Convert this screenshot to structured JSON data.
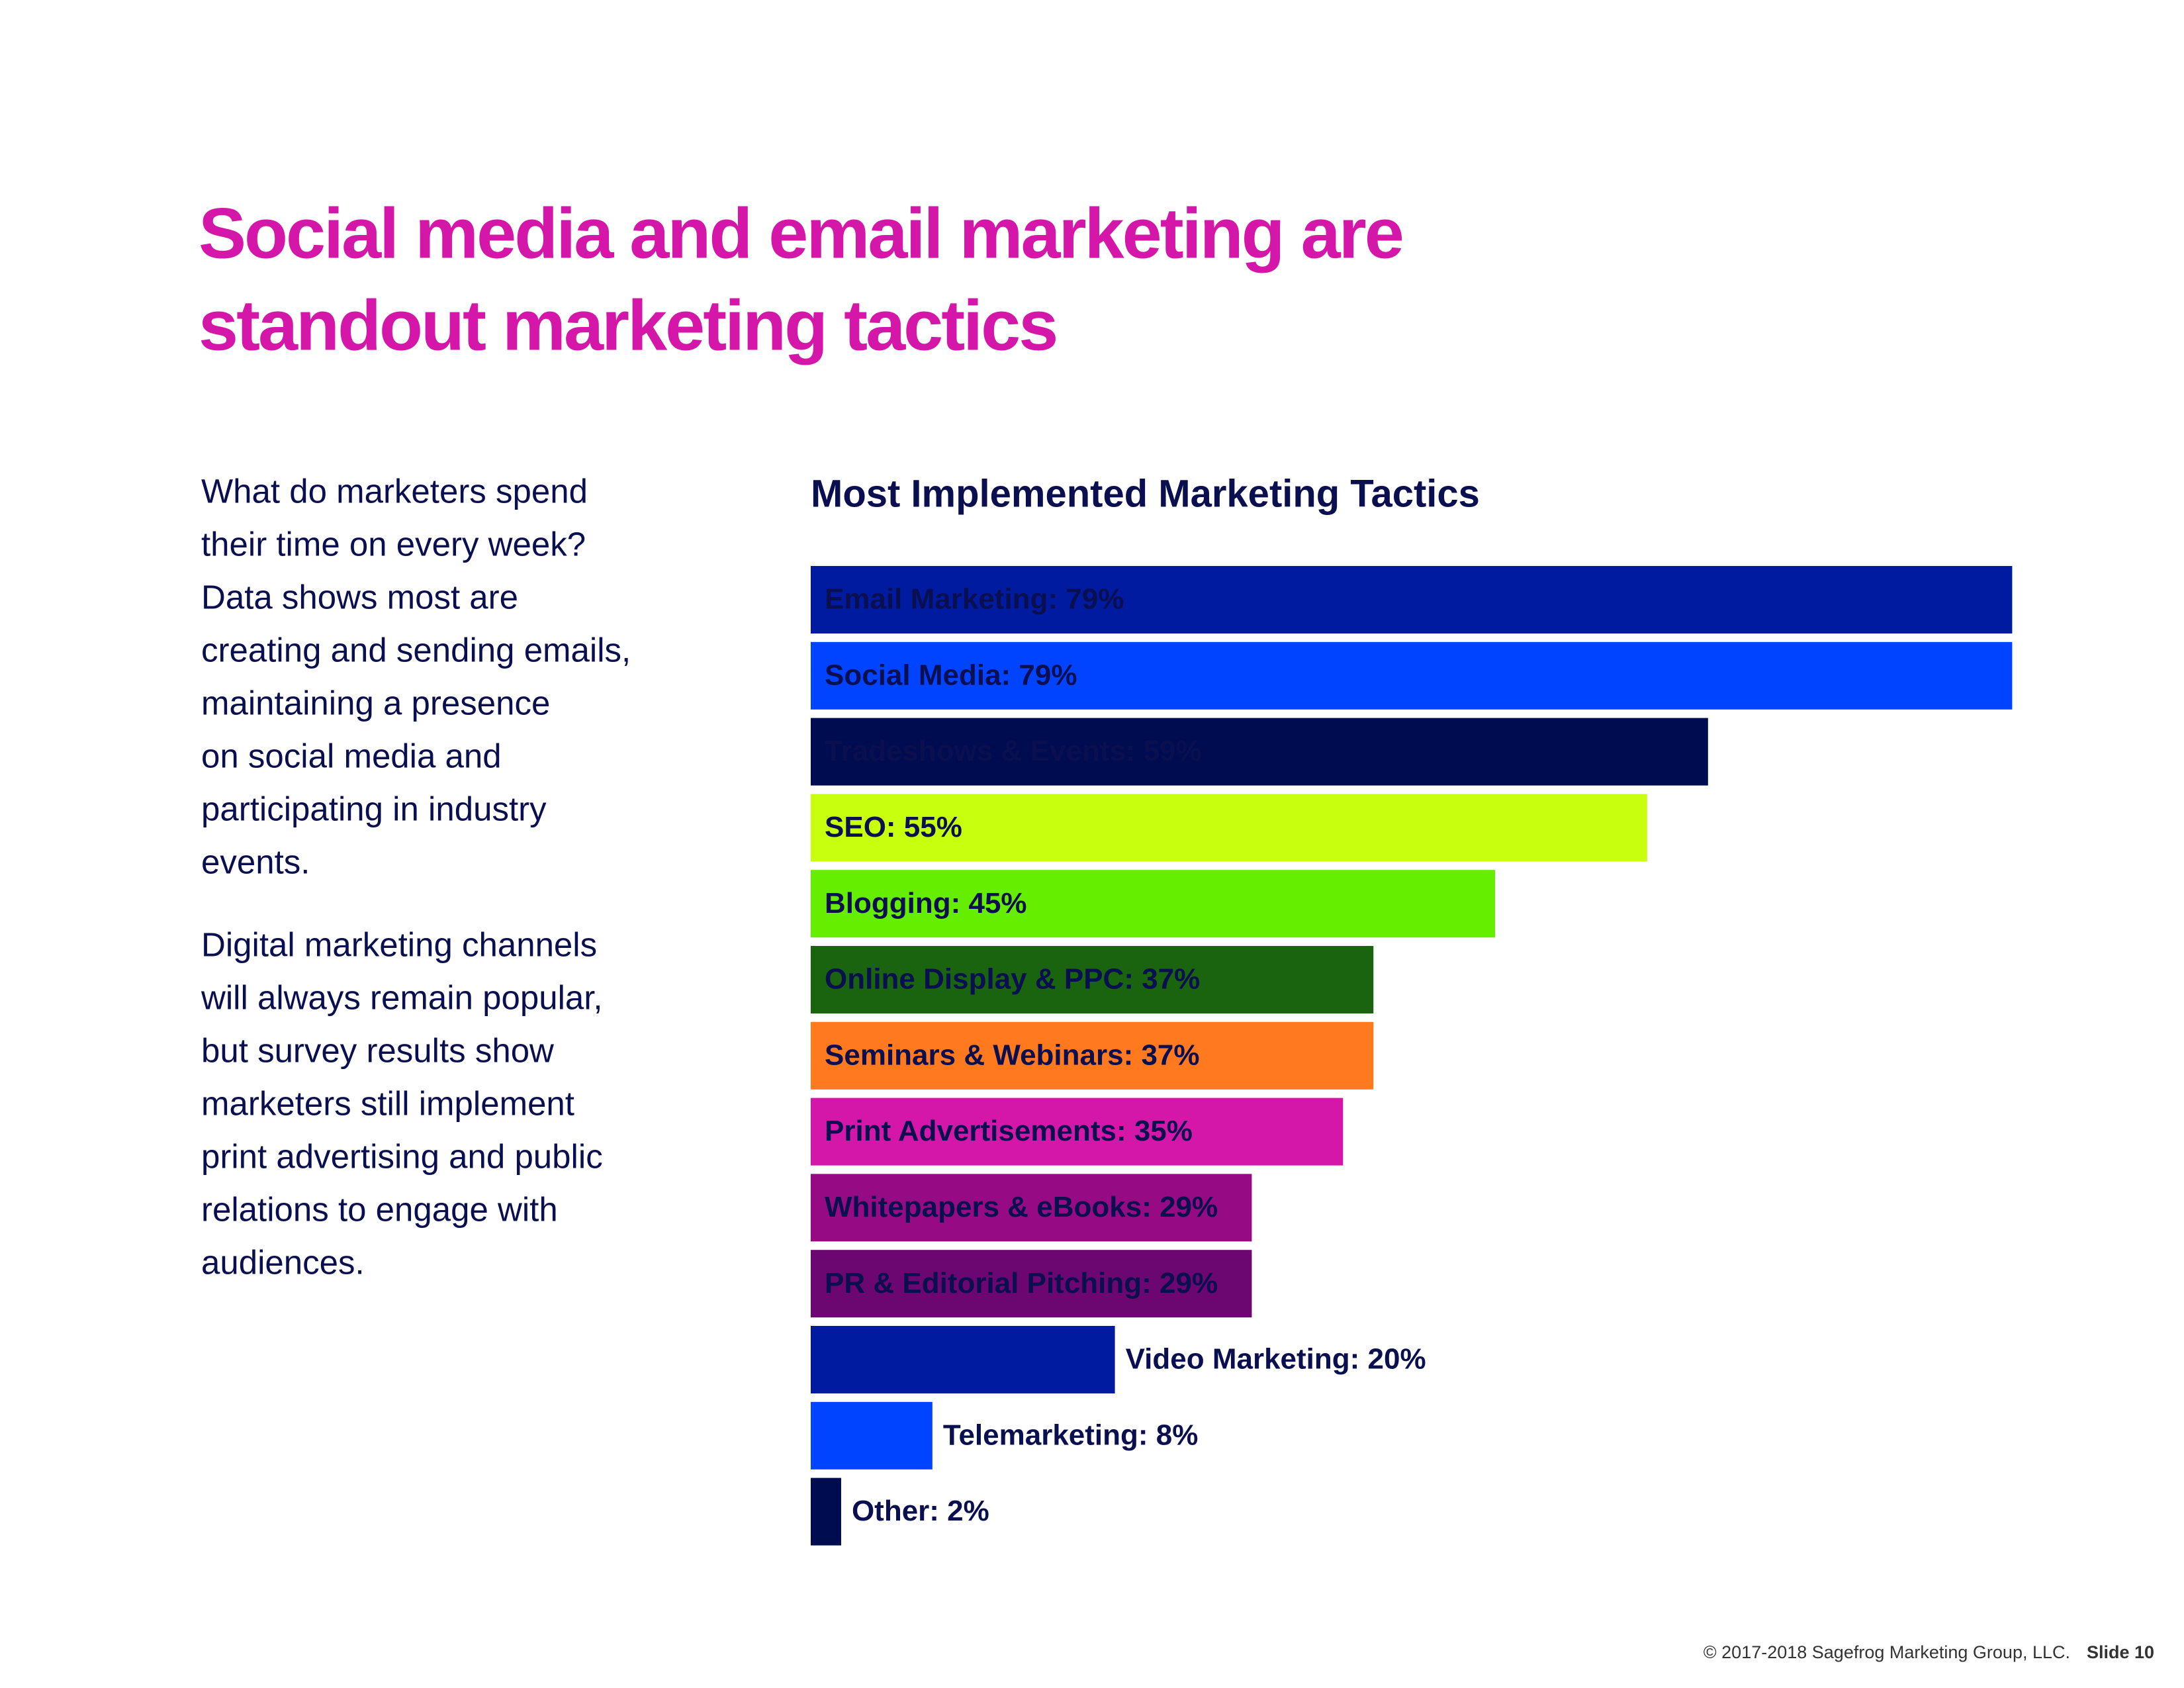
{
  "header": {
    "title_lines": [
      "Social media and email marketing are",
      "standout marketing tactics"
    ]
  },
  "body": {
    "paragraphs": [
      [
        "What do marketers spend",
        "their time on every week?",
        "Data shows most are",
        "creating and sending emails,",
        "maintaining a presence",
        "on social media and",
        "participating in industry",
        "events."
      ],
      [
        "Digital marketing channels",
        "will always remain popular,",
        "but survey results show",
        "marketers still implement",
        "print advertising and public",
        "relations to engage with",
        "audiences."
      ]
    ]
  },
  "chart_data": {
    "type": "hbar",
    "title": "Most Implemented Marketing Tactics",
    "categories": [
      "Email Marketing: 79%",
      "Social Media: 79%",
      "Tradeshows & Events: 59%",
      "SEO: 55%",
      "Blogging: 45%",
      "Online Display & PPC: 37%",
      "Seminars & Webinars: 37%",
      "Print Advertisements: 35%",
      "Whitepapers & eBooks: 29%",
      "PR & Editorial Pitching: 29%",
      "Video Marketing: 20%",
      "Telemarketing: 8%",
      "Other: 2%"
    ],
    "values": [
      79,
      79,
      59,
      55,
      45,
      37,
      37,
      35,
      29,
      29,
      20,
      8,
      2
    ],
    "colors": [
      "#001ba0",
      "#0044ff",
      "#000c50",
      "#c8ff0f",
      "#66ee00",
      "#1a6410",
      "#ff7a1e",
      "#d417a8",
      "#960a84",
      "#6c0670",
      "#001ba0",
      "#0044ff",
      "#000c50"
    ],
    "xlim": [
      0,
      100
    ]
  },
  "footer": {
    "copyright": "© 2017-2018 Sagefrog Marketing Group, LLC.",
    "slide": "Slide 10"
  }
}
